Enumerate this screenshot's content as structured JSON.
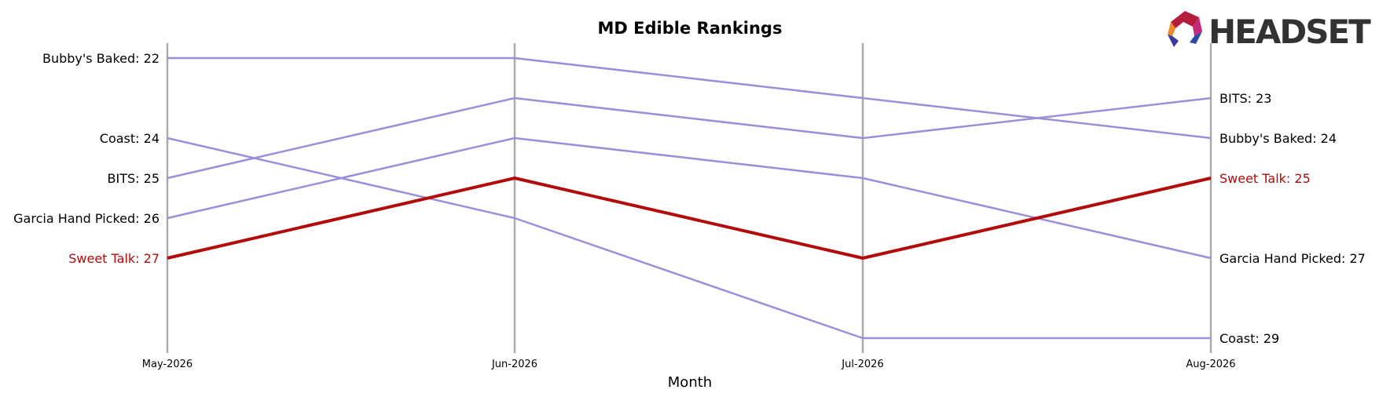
{
  "chart_data": {
    "type": "line",
    "title": "MD Edible Rankings",
    "xlabel": "Month",
    "ylabel": "",
    "x": [
      "May-2026",
      "Jun-2026",
      "Jul-2026",
      "Aug-2026"
    ],
    "y_scale": "rank (inverted, 1 at top)",
    "ylim": [
      22,
      29
    ],
    "grid": false,
    "series": [
      {
        "name": "Bubby's Baked",
        "values": [
          22,
          22,
          23,
          24
        ],
        "highlight": false
      },
      {
        "name": "Coast",
        "values": [
          24,
          26,
          29,
          29
        ],
        "highlight": false
      },
      {
        "name": "BITS",
        "values": [
          25,
          23,
          24,
          23
        ],
        "highlight": false
      },
      {
        "name": "Garcia Hand Picked",
        "values": [
          26,
          24,
          25,
          27
        ],
        "highlight": false
      },
      {
        "name": "Sweet Talk",
        "values": [
          27,
          25,
          27,
          25
        ],
        "highlight": true
      }
    ],
    "left_labels": [
      "Bubby's Baked: 22",
      "Coast: 24",
      "BITS: 25",
      "Garcia Hand Picked: 26",
      "Sweet Talk: 27"
    ],
    "right_labels": [
      "BITS: 23",
      "Bubby's Baked: 24",
      "Sweet Talk: 25",
      "Garcia Hand Picked: 27",
      "Coast: 29"
    ],
    "colors": {
      "series": "#9b8fd9",
      "highlight": "#b30a0a",
      "axis": "#aaaaaa"
    }
  },
  "logo": {
    "text": "HEADSET",
    "color": "#333333"
  }
}
